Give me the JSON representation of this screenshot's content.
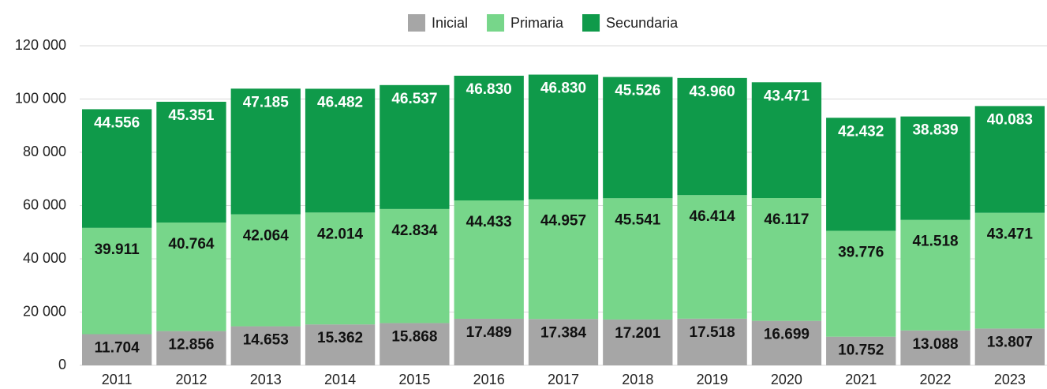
{
  "chart_data": {
    "type": "stacked_bar",
    "categories": [
      "2011",
      "2012",
      "2013",
      "2014",
      "2015",
      "2016",
      "2017",
      "2018",
      "2019",
      "2020",
      "2021",
      "2022",
      "2023"
    ],
    "series": [
      {
        "name": "Inicial",
        "color": "#a6a6a6",
        "values": [
          11704,
          12856,
          14653,
          15362,
          15868,
          17489,
          17384,
          17201,
          17518,
          16699,
          10752,
          13088,
          13807
        ],
        "value_labels": [
          "11.704",
          "12.856",
          "14.653",
          "15.362",
          "15.868",
          "17.489",
          "17.384",
          "17.201",
          "17.518",
          "16.699",
          "10.752",
          "13.088",
          "13.807"
        ]
      },
      {
        "name": "Primaria",
        "color": "#77d68a",
        "values": [
          39911,
          40764,
          42064,
          42014,
          42834,
          44433,
          44957,
          45541,
          46414,
          46117,
          39776,
          41518,
          43471
        ],
        "value_labels": [
          "39.911",
          "40.764",
          "42.064",
          "42.014",
          "42.834",
          "44.433",
          "44.957",
          "45.541",
          "46.414",
          "46.117",
          "39.776",
          "41.518",
          "43.471"
        ]
      },
      {
        "name": "Secundaria",
        "color": "#0f9a4a",
        "values": [
          44556,
          45351,
          47185,
          46482,
          46537,
          46830,
          46830,
          45526,
          43960,
          43471,
          42432,
          38839,
          40083
        ],
        "value_labels": [
          "44.556",
          "45.351",
          "47.185",
          "46.482",
          "46.537",
          "46.830",
          "46.830",
          "45.526",
          "43.960",
          "43.471",
          "42.432",
          "38.839",
          "40.083"
        ]
      }
    ],
    "ylim": [
      0,
      120000
    ],
    "yticks": [
      0,
      {
        "value": 20000,
        "label": "20 000"
      },
      {
        "value": 40000,
        "label": "40 000"
      },
      {
        "value": 60000,
        "label": "60 000"
      },
      {
        "value": 80000,
        "label": "80 000"
      },
      {
        "value": 100000,
        "label": "100 000"
      },
      {
        "value": 120000,
        "label": "120 000"
      }
    ],
    "grid": true,
    "legend": "top"
  }
}
